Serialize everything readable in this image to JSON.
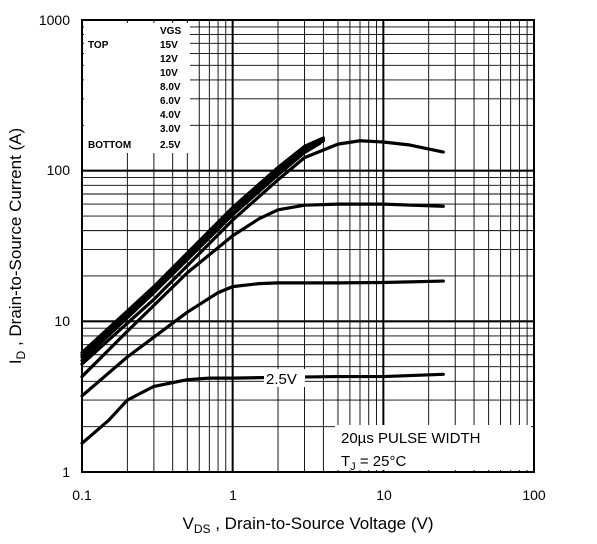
{
  "chart_data": {
    "type": "line",
    "xscale": "log",
    "yscale": "log",
    "xlim": [
      0.1,
      100
    ],
    "ylim": [
      1,
      1000
    ],
    "grid": true,
    "x_ticks": [
      "0.1",
      "1",
      "10",
      "100"
    ],
    "y_ticks": [
      "1",
      "10",
      "100",
      "1000"
    ],
    "xlabel": {
      "main": "V",
      "sub": "DS",
      "rest": " , Drain-to-Source Voltage (V)"
    },
    "ylabel": {
      "main": "I",
      "sub": "D",
      "rest": " , Drain-to-Source Current (A)"
    },
    "legend": {
      "header": "VGS",
      "top_label": "TOP",
      "bottom_label": "BOTTOM",
      "entries": [
        "15V",
        "12V",
        "10V",
        "8.0V",
        "6.0V",
        "4.0V",
        "3.0V",
        "2.5V"
      ]
    },
    "annotations": {
      "curve_label": "2.5V",
      "pulse": "20µs PULSE WIDTH",
      "tj_main": "T",
      "tj_sub": "J",
      "tj_rest": " = 25°C"
    },
    "series": [
      {
        "name": "15V",
        "x": [
          0.1,
          0.3,
          1,
          2,
          3,
          4
        ],
        "y": [
          6.2,
          17,
          57,
          105,
          145,
          165
        ]
      },
      {
        "name": "12V",
        "x": [
          0.1,
          0.3,
          1,
          2,
          3,
          4
        ],
        "y": [
          6.0,
          16.5,
          55,
          102,
          142,
          162
        ]
      },
      {
        "name": "10V",
        "x": [
          0.1,
          0.3,
          1,
          2,
          3,
          4
        ],
        "y": [
          5.8,
          16,
          53,
          98,
          138,
          158
        ]
      },
      {
        "name": "8.0V",
        "x": [
          0.1,
          0.3,
          1,
          2,
          3,
          3.8
        ],
        "y": [
          5.5,
          15.5,
          51,
          94,
          132,
          152
        ]
      },
      {
        "name": "6.0V",
        "x": [
          0.1,
          0.3,
          1,
          2,
          3,
          5,
          7,
          10,
          15,
          25
        ],
        "y": [
          5.2,
          14,
          47,
          87,
          122,
          150,
          158,
          155,
          148,
          133
        ]
      },
      {
        "name": "4.0V",
        "x": [
          0.1,
          0.2,
          0.5,
          1,
          1.5,
          2,
          3,
          5,
          10,
          25
        ],
        "y": [
          4.3,
          8.6,
          21,
          37,
          48,
          55,
          59,
          60,
          60,
          58
        ]
      },
      {
        "name": "3.0V",
        "x": [
          0.1,
          0.2,
          0.5,
          0.8,
          1,
          1.5,
          2,
          3,
          5,
          10,
          25
        ],
        "y": [
          3.2,
          5.8,
          11.5,
          15.5,
          17,
          17.8,
          18,
          18,
          18,
          18.1,
          18.5
        ]
      },
      {
        "name": "2.5V",
        "x": [
          0.1,
          0.15,
          0.2,
          0.3,
          0.5,
          0.7,
          1,
          2,
          5,
          10,
          25
        ],
        "y": [
          1.55,
          2.2,
          3.0,
          3.7,
          4.1,
          4.2,
          4.2,
          4.25,
          4.3,
          4.3,
          4.45
        ]
      }
    ]
  }
}
